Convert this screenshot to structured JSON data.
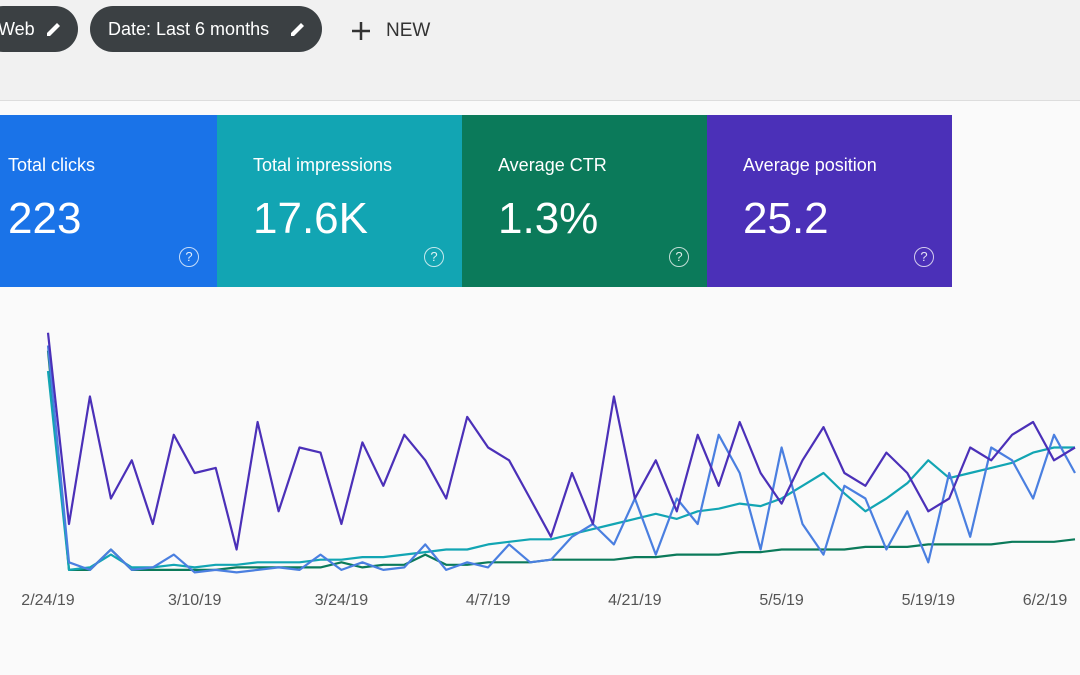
{
  "toolbar": {
    "chips": [
      "Web",
      "Date: Last 6 months"
    ],
    "new_button": "NEW"
  },
  "cards": [
    {
      "label": "Total clicks",
      "value": "223",
      "color": "#1a73e8"
    },
    {
      "label": "Total impressions",
      "value": "17.6K",
      "color": "#12a5b3"
    },
    {
      "label": "Average CTR",
      "value": "1.3%",
      "color": "#0b7a5a"
    },
    {
      "label": "Average position",
      "value": "25.2",
      "color": "#4b30b8"
    }
  ],
  "chart_data": {
    "type": "line",
    "categories": [
      "2/24/19",
      null,
      null,
      null,
      null,
      null,
      null,
      "3/10/19",
      null,
      null,
      null,
      null,
      null,
      null,
      "3/24/19",
      null,
      null,
      null,
      null,
      null,
      null,
      "4/7/19",
      null,
      null,
      null,
      null,
      null,
      null,
      "4/21/19",
      null,
      null,
      null,
      null,
      null,
      null,
      "5/5/19",
      null,
      null,
      null,
      null,
      null,
      null,
      "5/19/19",
      null,
      null,
      null,
      null,
      null,
      null,
      "6/2/19"
    ],
    "ylim": [
      0,
      100
    ],
    "series": [
      {
        "name": "Average position",
        "color": "#4b30b8",
        "values": [
          95,
          20,
          70,
          30,
          45,
          20,
          55,
          40,
          42,
          10,
          60,
          25,
          50,
          48,
          20,
          52,
          35,
          55,
          45,
          30,
          62,
          50,
          45,
          30,
          15,
          40,
          20,
          70,
          30,
          45,
          25,
          55,
          35,
          60,
          40,
          28,
          45,
          58,
          40,
          35,
          48,
          40,
          25,
          30,
          50,
          45,
          55,
          60,
          45,
          50
        ]
      },
      {
        "name": "Total clicks",
        "color": "#4a7fe0",
        "values": [
          90,
          5,
          2,
          10,
          2,
          3,
          8,
          1,
          2,
          1,
          2,
          3,
          2,
          8,
          2,
          5,
          2,
          3,
          12,
          2,
          5,
          3,
          12,
          5,
          6,
          15,
          20,
          12,
          30,
          8,
          30,
          20,
          55,
          40,
          10,
          50,
          20,
          8,
          35,
          30,
          10,
          25,
          5,
          40,
          15,
          50,
          45,
          30,
          55,
          40
        ]
      },
      {
        "name": "Total impressions",
        "color": "#12a5b3",
        "values": [
          80,
          2,
          3,
          8,
          3,
          3,
          4,
          3,
          4,
          4,
          5,
          5,
          5,
          6,
          6,
          7,
          7,
          8,
          9,
          10,
          10,
          12,
          13,
          14,
          14,
          16,
          18,
          20,
          22,
          24,
          22,
          25,
          26,
          28,
          27,
          30,
          35,
          40,
          32,
          25,
          30,
          36,
          45,
          38,
          40,
          42,
          44,
          48,
          50,
          50
        ]
      },
      {
        "name": "Average CTR",
        "color": "#0b7a5a",
        "values": [
          88,
          2,
          2,
          10,
          2,
          2,
          2,
          2,
          2,
          3,
          3,
          3,
          3,
          3,
          5,
          3,
          4,
          4,
          8,
          4,
          4,
          5,
          5,
          5,
          6,
          6,
          6,
          6,
          7,
          7,
          8,
          8,
          8,
          9,
          9,
          10,
          10,
          10,
          10,
          11,
          11,
          11,
          12,
          12,
          12,
          12,
          13,
          13,
          13,
          14
        ]
      }
    ]
  }
}
